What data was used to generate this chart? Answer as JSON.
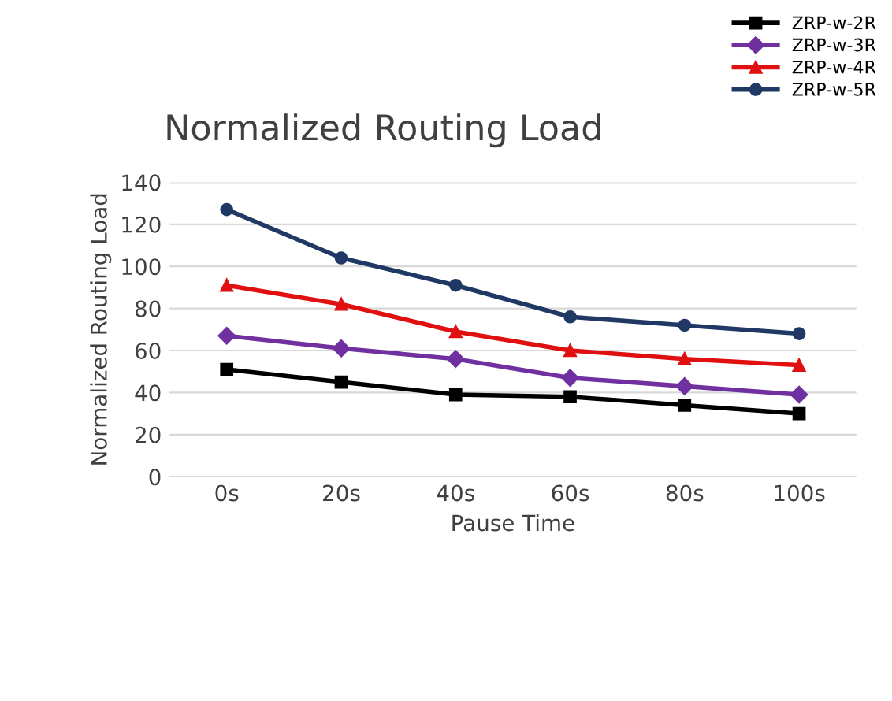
{
  "chart_data": {
    "type": "line",
    "title": "Normalized Routing Load",
    "xlabel": "Pause Time",
    "ylabel": "Normalized Routing Load",
    "categories": [
      "0s",
      "20s",
      "40s",
      "60s",
      "80s",
      "100s"
    ],
    "series": [
      {
        "name": "ZRP-w-2R",
        "color": "#000000",
        "marker": "square",
        "values": [
          51,
          45,
          39,
          38,
          34,
          30
        ]
      },
      {
        "name": "ZRP-w-3R",
        "color": "#7030a0",
        "marker": "diamond",
        "values": [
          67,
          61,
          56,
          47,
          43,
          39
        ]
      },
      {
        "name": "ZRP-w-4R",
        "color": "#e01010",
        "marker": "triangle",
        "values": [
          91,
          82,
          69,
          60,
          56,
          53
        ]
      },
      {
        "name": "ZRP-w-5R",
        "color": "#1f3864",
        "marker": "circle",
        "values": [
          127,
          104,
          91,
          76,
          72,
          68
        ]
      }
    ],
    "ylim": [
      0,
      140
    ],
    "yticks": [
      0,
      20,
      40,
      60,
      80,
      100,
      120,
      140
    ],
    "grid": "y",
    "legend": "top right",
    "line_style": "solid"
  }
}
